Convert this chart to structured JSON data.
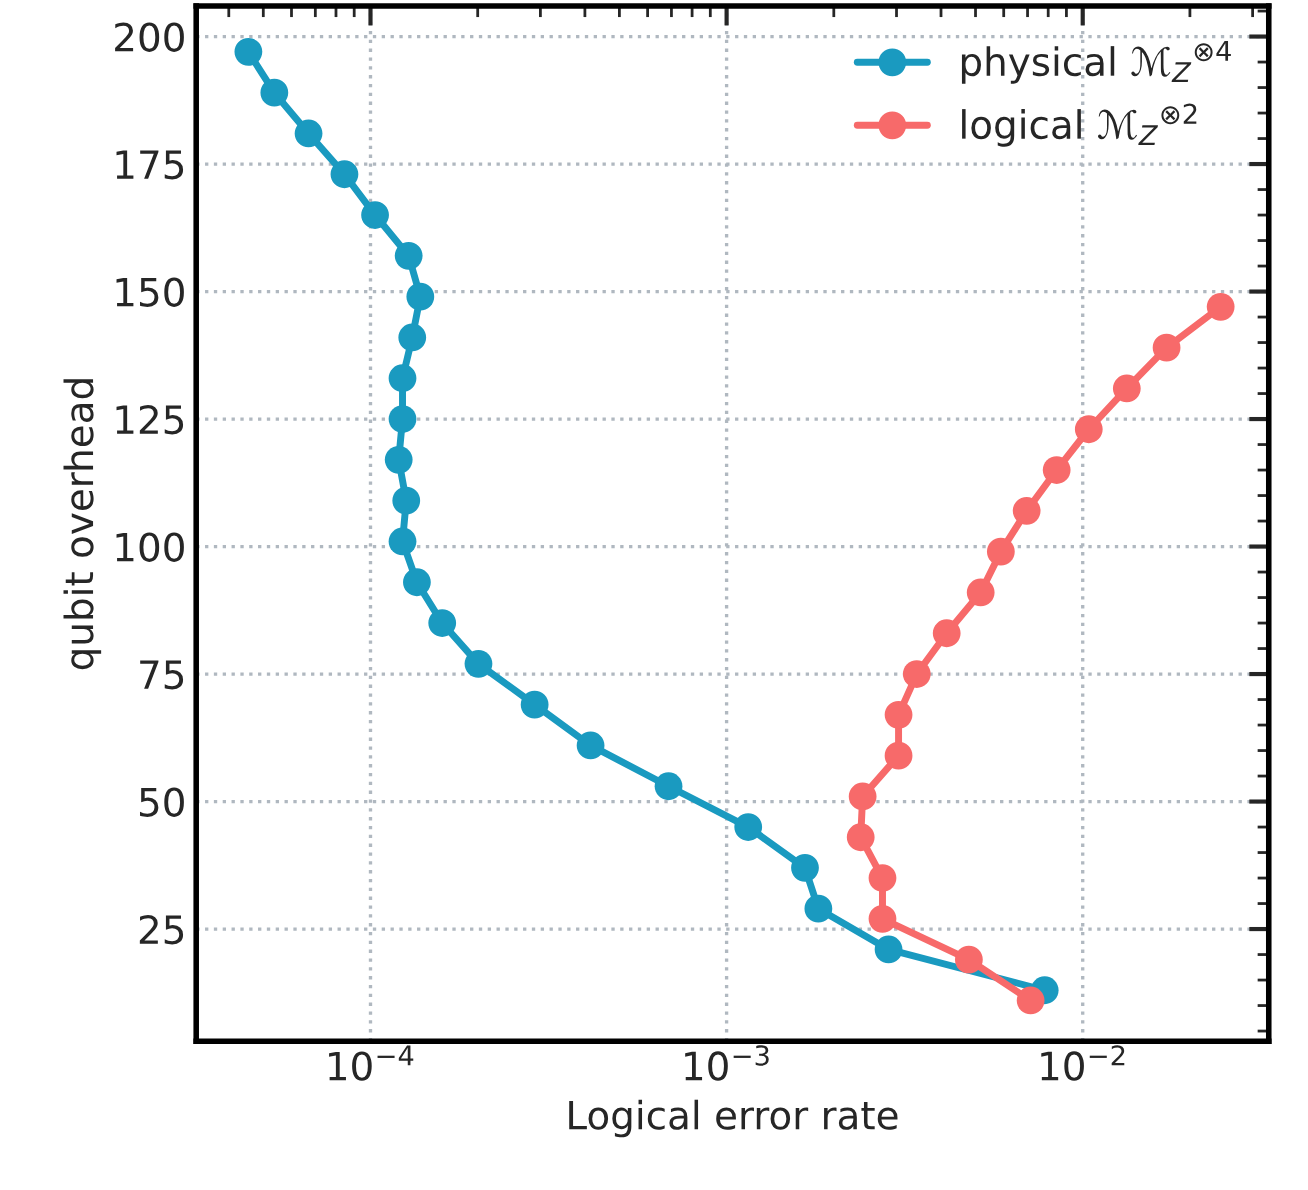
{
  "chart_data": {
    "type": "line",
    "xlabel": "Logical error rate",
    "ylabel": "qubit overhead",
    "log": "x",
    "grid": true,
    "legend": "top right",
    "marker": "circle",
    "line_style": "solid",
    "xlim": [
      3.24e-05,
      0.0333
    ],
    "ylim": [
      3,
      206
    ],
    "xticks": [
      {
        "value": 0.0001,
        "label": "10$^{−4}$"
      },
      {
        "value": 0.001,
        "label": "10$^{−3}$"
      },
      {
        "value": 0.01,
        "label": "10$^{−2}$"
      }
    ],
    "yticks": [
      25,
      50,
      75,
      100,
      125,
      150,
      175,
      200
    ],
    "series": [
      {
        "name": "physical ℳ$_{Z}$$^{⊗4}$",
        "color": "#1a9ac0",
        "x": [
          4.54e-05,
          5.37e-05,
          6.7e-05,
          8.45e-05,
          0.000103,
          0.000128,
          0.000138,
          0.000131,
          0.000123,
          0.000123,
          0.00012,
          0.000126,
          0.000123,
          0.000135,
          0.000159,
          0.000201,
          0.000289,
          0.000415,
          0.000687,
          0.00115,
          0.00166,
          0.00181,
          0.00285,
          0.00782
        ],
        "values": [
          197,
          189,
          181,
          173,
          165,
          157,
          149,
          141,
          133,
          125,
          117,
          109,
          101,
          93,
          85,
          77,
          69,
          61,
          53,
          45,
          37,
          29,
          21,
          13
        ]
      },
      {
        "name": "logical ℳ$_{Z}$$^{⊗2}$",
        "color": "#f76a6a",
        "x": [
          0.0244,
          0.0172,
          0.0133,
          0.0104,
          0.00845,
          0.00696,
          0.00589,
          0.00517,
          0.00415,
          0.00342,
          0.00304,
          0.00304,
          0.00241,
          0.00238,
          0.00274,
          0.00274,
          0.00479,
          0.00714
        ],
        "values": [
          147,
          139,
          131,
          123,
          115,
          107,
          99,
          91,
          83,
          75,
          67,
          59,
          51,
          43,
          35,
          27,
          19,
          11
        ]
      }
    ]
  }
}
